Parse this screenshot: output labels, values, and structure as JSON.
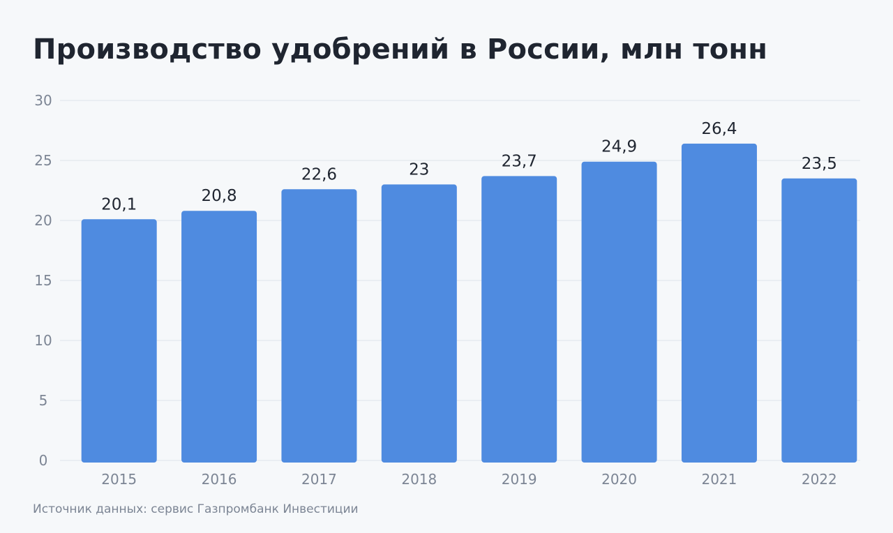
{
  "title": "Производство удобрений в России, млн тонн",
  "source": "Источник данных: сервис Газпромбанк Инвестиции",
  "colors": {
    "bar": "#4f8be0",
    "grid": "#dfe4ea",
    "axis_text": "#7c8594",
    "label_text": "#1f2530",
    "background": "#f6f8fa"
  },
  "chart_data": {
    "type": "bar",
    "title": "Производство удобрений в России, млн тонн",
    "categories": [
      "2015",
      "2016",
      "2017",
      "2018",
      "2019",
      "2020",
      "2021",
      "2022"
    ],
    "values": [
      20.1,
      20.8,
      22.6,
      23,
      23.7,
      24.9,
      26.4,
      23.5
    ],
    "value_labels": [
      "20,1",
      "20,8",
      "22,6",
      "23",
      "23,7",
      "24,9",
      "26,4",
      "23,5"
    ],
    "yticks": [
      0,
      5,
      10,
      15,
      20,
      25,
      30
    ],
    "ylim": [
      0,
      30
    ],
    "xlabel": "",
    "ylabel": "",
    "grid": true,
    "legend": false
  }
}
